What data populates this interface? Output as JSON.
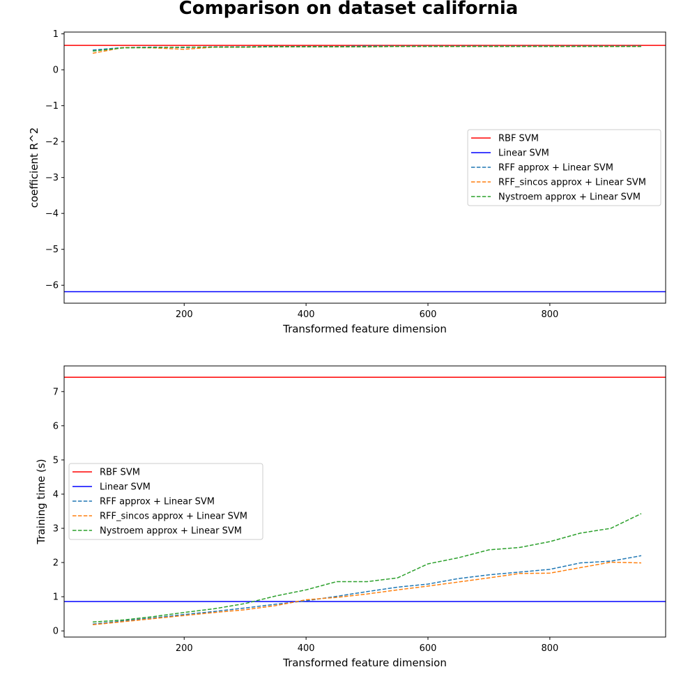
{
  "figure": {
    "title": "Comparison on dataset california"
  },
  "chart_data": [
    {
      "type": "line",
      "xlabel": "Transformed feature dimension",
      "ylabel": "coefficient R^2",
      "xlim": [
        3,
        990
      ],
      "ylim": [
        -6.5,
        1.05
      ],
      "xticks": [
        200,
        400,
        600,
        800
      ],
      "yticks": [
        1,
        0,
        -1,
        -2,
        -3,
        -4,
        -5,
        -6
      ],
      "xtick_labels": [
        "200",
        "400",
        "600",
        "800"
      ],
      "ytick_labels": [
        "1",
        "0",
        "−1",
        "−2",
        "−3",
        "−4",
        "−5",
        "−6"
      ],
      "legend_position": "center-right",
      "hlines": [
        {
          "name": "RBF SVM",
          "value": 0.68,
          "color": "#ff0000"
        },
        {
          "name": "Linear SVM",
          "value": -6.18,
          "color": "#0000ff"
        }
      ],
      "x": [
        50,
        100,
        150,
        200,
        250,
        300,
        350,
        400,
        450,
        500,
        550,
        600,
        650,
        700,
        750,
        800,
        850,
        900,
        950
      ],
      "series": [
        {
          "name": "RFF approx + Linear SVM",
          "color": "#1f77b4",
          "style": "dashed",
          "values": [
            0.55,
            0.62,
            0.63,
            0.62,
            0.64,
            0.64,
            0.65,
            0.65,
            0.65,
            0.66,
            0.66,
            0.66,
            0.66,
            0.66,
            0.66,
            0.66,
            0.66,
            0.66,
            0.66
          ]
        },
        {
          "name": "RFF_sincos approx + Linear SVM",
          "color": "#ff7f0e",
          "style": "dashed",
          "values": [
            0.46,
            0.62,
            0.61,
            0.57,
            0.63,
            0.63,
            0.64,
            0.64,
            0.64,
            0.64,
            0.65,
            0.65,
            0.65,
            0.65,
            0.65,
            0.65,
            0.65,
            0.65,
            0.65
          ]
        },
        {
          "name": "Nystroem approx + Linear SVM",
          "color": "#2ca02c",
          "style": "dashed",
          "values": [
            0.52,
            0.61,
            0.62,
            0.63,
            0.63,
            0.63,
            0.64,
            0.64,
            0.64,
            0.64,
            0.65,
            0.65,
            0.65,
            0.65,
            0.65,
            0.65,
            0.65,
            0.65,
            0.65
          ]
        }
      ]
    },
    {
      "type": "line",
      "xlabel": "Transformed feature dimension",
      "ylabel": "Training time (s)",
      "xlim": [
        3,
        990
      ],
      "ylim": [
        -0.18,
        7.75
      ],
      "xticks": [
        200,
        400,
        600,
        800
      ],
      "yticks": [
        0,
        1,
        2,
        3,
        4,
        5,
        6,
        7
      ],
      "xtick_labels": [
        "200",
        "400",
        "600",
        "800"
      ],
      "ytick_labels": [
        "0",
        "1",
        "2",
        "3",
        "4",
        "5",
        "6",
        "7"
      ],
      "legend_position": "center-left",
      "hlines": [
        {
          "name": "RBF SVM",
          "value": 7.42,
          "color": "#ff0000"
        },
        {
          "name": "Linear SVM",
          "value": 0.86,
          "color": "#0000ff"
        }
      ],
      "x": [
        50,
        100,
        150,
        200,
        250,
        300,
        350,
        400,
        450,
        500,
        550,
        600,
        650,
        700,
        750,
        800,
        850,
        900,
        950
      ],
      "series": [
        {
          "name": "RFF approx + Linear SVM",
          "color": "#1f77b4",
          "style": "dashed",
          "values": [
            0.2,
            0.29,
            0.38,
            0.48,
            0.57,
            0.67,
            0.78,
            0.88,
            1.01,
            1.15,
            1.28,
            1.37,
            1.53,
            1.64,
            1.72,
            1.8,
            1.99,
            2.04,
            2.2
          ]
        },
        {
          "name": "RFF_sincos approx + Linear SVM",
          "color": "#ff7f0e",
          "style": "dashed",
          "values": [
            0.18,
            0.27,
            0.36,
            0.45,
            0.54,
            0.62,
            0.74,
            0.91,
            0.98,
            1.08,
            1.2,
            1.31,
            1.43,
            1.55,
            1.68,
            1.69,
            1.85,
            2.01,
            1.99
          ]
        },
        {
          "name": "Nystroem approx + Linear SVM",
          "color": "#2ca02c",
          "style": "dashed",
          "values": [
            0.26,
            0.32,
            0.42,
            0.54,
            0.65,
            0.8,
            1.02,
            1.2,
            1.44,
            1.44,
            1.55,
            1.96,
            2.14,
            2.37,
            2.44,
            2.61,
            2.86,
            3.0,
            3.43
          ]
        }
      ]
    }
  ]
}
